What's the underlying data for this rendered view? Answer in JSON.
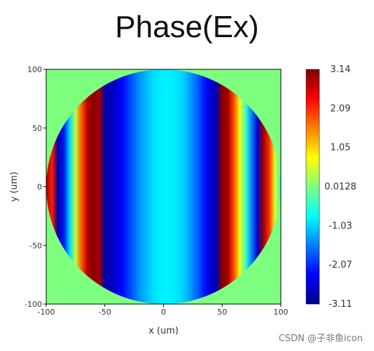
{
  "chart_data": {
    "type": "heatmap",
    "title": "Phase(Ex)",
    "xlabel": "x (um)",
    "ylabel": "y (um)",
    "xlim": [
      -100,
      100
    ],
    "ylim": [
      -100,
      100
    ],
    "x_ticks": [
      -100,
      -50,
      0,
      50,
      100
    ],
    "y_ticks": [
      100,
      50,
      0,
      -50,
      -100
    ],
    "colorbar": {
      "min": -3.11,
      "max": 3.14,
      "tick_labels": [
        "3.14",
        "2.09",
        "1.05",
        "0.0128",
        "-1.03",
        "-2.07",
        "-3.11"
      ],
      "colormap": "jet"
    },
    "aperture": {
      "shape": "circle",
      "center": [
        0,
        0
      ],
      "radius": 100
    },
    "background_value": 0.0128,
    "phase_profile": {
      "x": [
        -100,
        -95,
        -90,
        -85,
        -80,
        -75,
        -70,
        -65,
        -60,
        -55,
        -50,
        -45,
        -40,
        -35,
        -30,
        -25,
        -20,
        -15,
        -10,
        -5,
        0,
        5,
        10,
        15,
        20,
        25,
        30,
        35,
        40,
        45,
        50,
        55,
        60,
        65,
        70,
        75,
        80,
        85,
        90,
        95,
        100
      ],
      "phase": [
        2.9,
        2.2,
        -3.0,
        -2.2,
        -1.0,
        0.4,
        1.8,
        2.8,
        3.1,
        2.9,
        -3.0,
        -2.8,
        -2.6,
        -2.3,
        -2.0,
        -1.7,
        -1.4,
        -1.2,
        -1.0,
        -0.9,
        -0.85,
        -0.85,
        -0.9,
        -1.0,
        -1.2,
        -1.5,
        -1.8,
        -2.2,
        -2.6,
        -2.9,
        3.1,
        2.9,
        1.9,
        0.7,
        -0.4,
        -1.5,
        -2.7,
        3.0,
        2.1,
        0.6,
        -0.5
      ]
    },
    "grid": false
  },
  "watermark": "CSDN @子非鱼icon",
  "colors": {
    "background_field": "#7ff87f",
    "axis": "#000000"
  }
}
